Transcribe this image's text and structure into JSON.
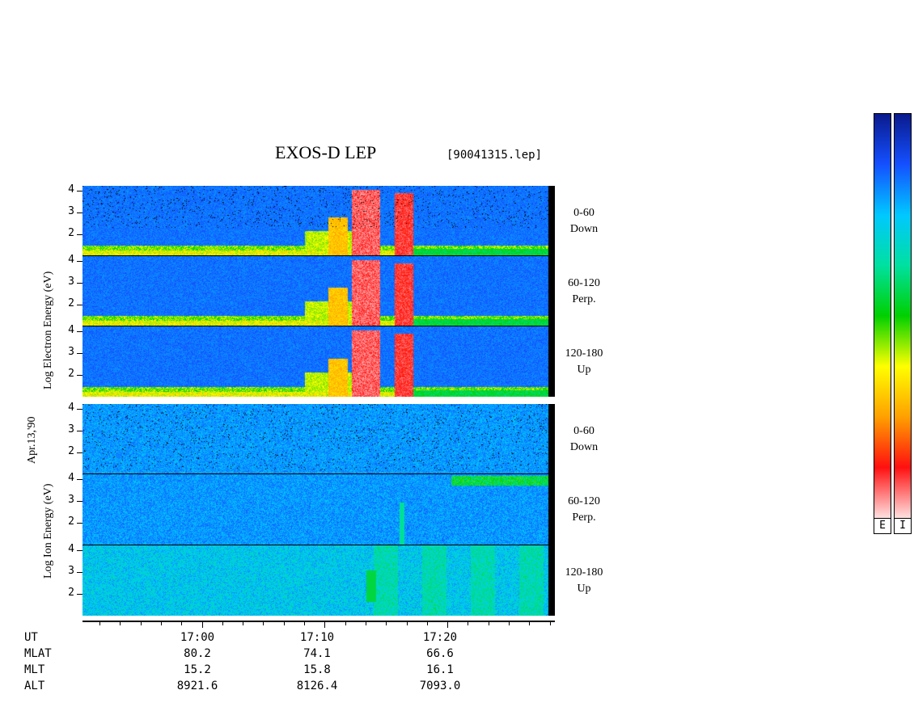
{
  "title": "EXOS-D LEP",
  "filename": "[90041315.lep]",
  "date_label": "Apr.13,'90",
  "electron_axis_label": "Log  Electron  Energy  (eV)",
  "ion_axis_label": "Log   Ion   Energy  (eV)",
  "colorbar_labels": [
    "E",
    "I"
  ],
  "chart_data": {
    "type": "heatmap",
    "x_axis": {
      "time_ticks": [
        "17:00",
        "17:10",
        "17:20"
      ],
      "rows": [
        {
          "label": "UT",
          "values": [
            "17:00",
            "17:10",
            "17:20"
          ]
        },
        {
          "label": "MLAT",
          "values": [
            "80.2",
            "74.1",
            "66.6"
          ]
        },
        {
          "label": "MLT",
          "values": [
            "15.2",
            "15.8",
            "16.1"
          ]
        },
        {
          "label": "ALT",
          "values": [
            "8921.6",
            "8126.4",
            "7093.0"
          ]
        }
      ]
    },
    "y_ticks": [
      "4",
      "3",
      "2"
    ],
    "panels": [
      {
        "species": "electron",
        "pitch": "0-60",
        "dir": "Down"
      },
      {
        "species": "electron",
        "pitch": "60-120",
        "dir": "Perp."
      },
      {
        "species": "electron",
        "pitch": "120-180",
        "dir": "Up"
      },
      {
        "species": "ion",
        "pitch": "0-60",
        "dir": "Down"
      },
      {
        "species": "ion",
        "pitch": "60-120",
        "dir": "Perp."
      },
      {
        "species": "ion",
        "pitch": "120-180",
        "dir": "Up"
      }
    ],
    "colorscale": [
      "#0a1a8c",
      "#1450ff",
      "#00c8ff",
      "#00e0a0",
      "#00d000",
      "#ffff00",
      "#ffa000",
      "#ff1010",
      "#ffe0e0"
    ]
  }
}
